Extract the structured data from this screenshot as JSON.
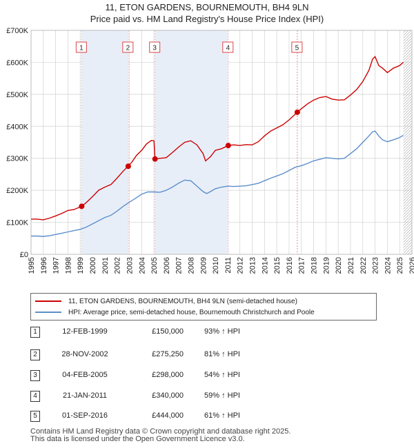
{
  "title_line1": "11, ETON GARDENS, BOURNEMOUTH, BH4 9LN",
  "title_line2": "Price paid vs. HM Land Registry's House Price Index (HPI)",
  "legend": {
    "property_label": "11, ETON GARDENS, BOURNEMOUTH, BH4 9LN (semi-detached house)",
    "hpi_label": "HPI: Average price, semi-detached house, Bournemouth Christchurch and Poole"
  },
  "colors": {
    "property": "#cc0000",
    "hpi": "#5b8ec9",
    "shade": "#e8eef8",
    "grid": "#d0d0d0"
  },
  "transactions": [
    {
      "num": "1",
      "date": "12-FEB-1999",
      "price": "£150,000",
      "hpi": "93% ↑ HPI"
    },
    {
      "num": "2",
      "date": "28-NOV-2002",
      "price": "£275,250",
      "hpi": "81% ↑ HPI"
    },
    {
      "num": "3",
      "date": "04-FEB-2005",
      "price": "£298,000",
      "hpi": "54% ↑ HPI"
    },
    {
      "num": "4",
      "date": "21-JAN-2011",
      "price": "£340,000",
      "hpi": "59% ↑ HPI"
    },
    {
      "num": "5",
      "date": "01-SEP-2016",
      "price": "£444,000",
      "hpi": "61% ↑ HPI"
    }
  ],
  "footer_line1": "Contains HM Land Registry data © Crown copyright and database right 2025.",
  "footer_line2": "This data is licensed under the Open Government Licence v3.0.",
  "chart_data": {
    "type": "line",
    "title": "11, ETON GARDENS, BOURNEMOUTH, BH4 9LN — Price paid vs. HM Land Registry's House Price Index (HPI)",
    "xlim": [
      1995,
      2026
    ],
    "ylim": [
      0,
      700000
    ],
    "x_ticks": [
      1995,
      1996,
      1997,
      1998,
      1999,
      2000,
      2001,
      2002,
      2003,
      2004,
      2005,
      2006,
      2007,
      2008,
      2009,
      2010,
      2011,
      2012,
      2013,
      2014,
      2015,
      2016,
      2017,
      2018,
      2019,
      2020,
      2021,
      2022,
      2023,
      2024,
      2025,
      2026
    ],
    "y_ticks": [
      0,
      100000,
      200000,
      300000,
      400000,
      500000,
      600000,
      700000
    ],
    "y_tick_labels": [
      "£0",
      "£100K",
      "£200K",
      "£300K",
      "£400K",
      "£500K",
      "£600K",
      "£700K"
    ],
    "grid": true,
    "data_end_year": 2025.3,
    "sales": [
      {
        "label": "1",
        "year": 1999.12,
        "value": 150000
      },
      {
        "label": "2",
        "year": 2002.91,
        "value": 275250
      },
      {
        "label": "3",
        "year": 2005.09,
        "value": 298000
      },
      {
        "label": "4",
        "year": 2011.05,
        "value": 340000
      },
      {
        "label": "5",
        "year": 2016.67,
        "value": 444000
      }
    ],
    "series": [
      {
        "name": "11, ETON GARDENS, BOURNEMOUTH, BH4 9LN (semi-detached house)",
        "x": [
          1995,
          1995.5,
          1996,
          1996.5,
          1997,
          1997.5,
          1998,
          1998.5,
          1999.12,
          1999.5,
          2000,
          2000.5,
          2001,
          2001.5,
          2002,
          2002.5,
          2002.91,
          2003.2,
          2003.6,
          2004,
          2004.4,
          2004.8,
          2005.0,
          2005.09,
          2005.5,
          2006,
          2006.5,
          2007,
          2007.5,
          2008,
          2008.5,
          2009,
          2009.2,
          2009.6,
          2010,
          2010.5,
          2011.05,
          2011.5,
          2012,
          2012.5,
          2013,
          2013.5,
          2014,
          2014.5,
          2015,
          2015.5,
          2016,
          2016.67,
          2017,
          2017.5,
          2018,
          2018.5,
          2019,
          2019.5,
          2020,
          2020.5,
          2021,
          2021.5,
          2022,
          2022.5,
          2022.8,
          2023,
          2023.3,
          2023.6,
          2024,
          2024.5,
          2025,
          2025.3
        ],
        "values": [
          110000,
          110000,
          108000,
          113000,
          120000,
          128000,
          137000,
          140000,
          150000,
          162000,
          180000,
          200000,
          210000,
          218000,
          238000,
          260000,
          275250,
          288000,
          310000,
          325000,
          345000,
          356000,
          355000,
          298000,
          300000,
          302000,
          318000,
          335000,
          350000,
          355000,
          342000,
          315000,
          292000,
          305000,
          325000,
          330000,
          340000,
          342000,
          340000,
          343000,
          342000,
          352000,
          370000,
          385000,
          395000,
          405000,
          420000,
          444000,
          455000,
          470000,
          482000,
          490000,
          493000,
          485000,
          482000,
          483000,
          498000,
          515000,
          540000,
          575000,
          610000,
          618000,
          590000,
          582000,
          568000,
          582000,
          590000,
          600000
        ]
      },
      {
        "name": "HPI: Average price, semi-detached house, Bournemouth Christchurch and Poole",
        "x": [
          1995,
          1995.5,
          1996,
          1996.5,
          1997,
          1997.5,
          1998,
          1998.5,
          1999,
          1999.5,
          2000,
          2000.5,
          2001,
          2001.5,
          2002,
          2002.5,
          2003,
          2003.5,
          2004,
          2004.5,
          2005,
          2005.5,
          2006,
          2006.5,
          2007,
          2007.5,
          2008,
          2008.5,
          2009,
          2009.3,
          2009.6,
          2010,
          2010.5,
          2011,
          2011.5,
          2012,
          2012.5,
          2013,
          2013.5,
          2014,
          2014.5,
          2015,
          2015.5,
          2016,
          2016.5,
          2017,
          2017.5,
          2018,
          2018.5,
          2019,
          2019.5,
          2020,
          2020.5,
          2021,
          2021.5,
          2022,
          2022.5,
          2022.8,
          2023,
          2023.3,
          2023.6,
          2024,
          2024.5,
          2025,
          2025.3
        ],
        "values": [
          57000,
          57000,
          56000,
          58000,
          62000,
          66000,
          70000,
          74000,
          78000,
          85000,
          95000,
          105000,
          115000,
          122000,
          135000,
          150000,
          163000,
          175000,
          188000,
          195000,
          195000,
          194000,
          200000,
          210000,
          222000,
          232000,
          230000,
          213000,
          196000,
          190000,
          196000,
          205000,
          210000,
          213000,
          212000,
          213000,
          214000,
          218000,
          222000,
          230000,
          238000,
          245000,
          252000,
          262000,
          272000,
          277000,
          284000,
          292000,
          297000,
          302000,
          300000,
          298000,
          300000,
          315000,
          330000,
          350000,
          370000,
          383000,
          385000,
          370000,
          358000,
          352000,
          358000,
          365000,
          372000
        ]
      }
    ]
  }
}
